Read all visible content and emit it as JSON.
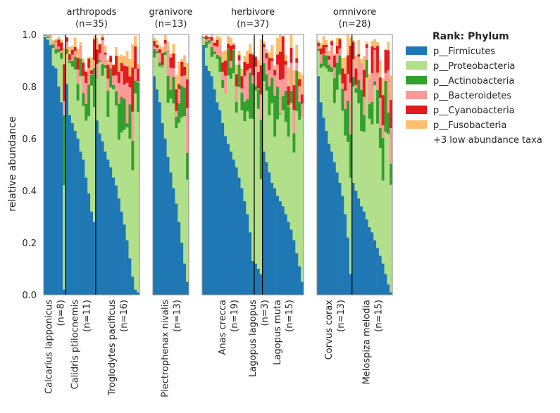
{
  "chart_data": {
    "type": "bar",
    "stacked": true,
    "ylabel": "relative abundance",
    "ylim": [
      0,
      1.0
    ],
    "yticks": [
      "0.0",
      "0.2",
      "0.4",
      "0.6",
      "0.8",
      "1.0"
    ],
    "legend": {
      "title": "Rank: Phylum",
      "placement": "right",
      "entries": [
        "p__Firmicutes",
        "p__Proteobacteria",
        "p__Actinobacteria",
        "p__Bacteroidetes",
        "p__Cyanobacteria",
        "p__Fusobacteria"
      ],
      "extra": "+3 low abundance taxa"
    },
    "colors": {
      "p__Firmicutes": "#1f78b4",
      "p__Proteobacteria": "#b2df8a",
      "p__Actinobacteria": "#33a02c",
      "p__Bacteroidetes": "#fb9a99",
      "p__Cyanobacteria": "#e31a1c",
      "p__Fusobacteria": "#fdbf6f",
      "other": "#ffffff"
    },
    "groups": [
      {
        "title": "arthropods",
        "n_label": "(n=35)",
        "species": [
          {
            "name": "Calcarius lapponicus",
            "n_label": "(n=8)",
            "firmicutes": [
              0.99,
              0.98,
              0.96,
              0.88,
              0.87,
              0.8,
              0.74,
              0.02
            ]
          },
          {
            "name": "Calidris ptilocnemis",
            "n_label": "(n=11)",
            "firmicutes": [
              0.81,
              0.69,
              0.66,
              0.63,
              0.6,
              0.55,
              0.52,
              0.45,
              0.39,
              0.32,
              0.28
            ]
          },
          {
            "name": "Troglodytes pacificus",
            "n_label": "(n=16)",
            "firmicutes": [
              0.67,
              0.62,
              0.59,
              0.55,
              0.52,
              0.49,
              0.45,
              0.42,
              0.37,
              0.32,
              0.27,
              0.21,
              0.14,
              0.07,
              0.02,
              0.01
            ]
          }
        ]
      },
      {
        "title": "granivore",
        "n_label": "(n=13)",
        "species": [
          {
            "name": "Plectrophenax nivalis",
            "n_label": "(n=13)",
            "firmicutes": [
              0.84,
              0.79,
              0.74,
              0.66,
              0.6,
              0.53,
              0.47,
              0.41,
              0.35,
              0.28,
              0.2,
              0.12,
              0.05
            ]
          }
        ]
      },
      {
        "title": "herbivore",
        "n_label": "(n=37)",
        "species": [
          {
            "name": "Anas crecca",
            "n_label": "(n=19)",
            "firmicutes": [
              0.96,
              0.88,
              0.86,
              0.84,
              0.79,
              0.74,
              0.71,
              0.66,
              0.61,
              0.58,
              0.55,
              0.52,
              0.49,
              0.45,
              0.41,
              0.36,
              0.31,
              0.24,
              0.13
            ]
          },
          {
            "name": "Lagopus lagopus",
            "n_label": "(n=3)",
            "firmicutes": [
              0.12,
              0.1,
              0.08
            ]
          },
          {
            "name": "Lagopus muta",
            "n_label": "(n=15)",
            "firmicutes": [
              0.55,
              0.51,
              0.47,
              0.43,
              0.41,
              0.38,
              0.36,
              0.34,
              0.31,
              0.28,
              0.25,
              0.21,
              0.16,
              0.11,
              0.05
            ]
          }
        ]
      },
      {
        "title": "omnivore",
        "n_label": "(n=28)",
        "species": [
          {
            "name": "Corvus corax",
            "n_label": "(n=13)",
            "firmicutes": [
              0.84,
              0.74,
              0.68,
              0.63,
              0.58,
              0.55,
              0.51,
              0.47,
              0.43,
              0.38,
              0.31,
              0.22,
              0.08
            ]
          },
          {
            "name": "Melospiza melodia",
            "n_label": "(n=15)",
            "firmicutes": [
              0.43,
              0.4,
              0.37,
              0.34,
              0.32,
              0.29,
              0.26,
              0.24,
              0.21,
              0.18,
              0.15,
              0.12,
              0.08,
              0.04,
              0.01
            ]
          }
        ]
      }
    ]
  }
}
